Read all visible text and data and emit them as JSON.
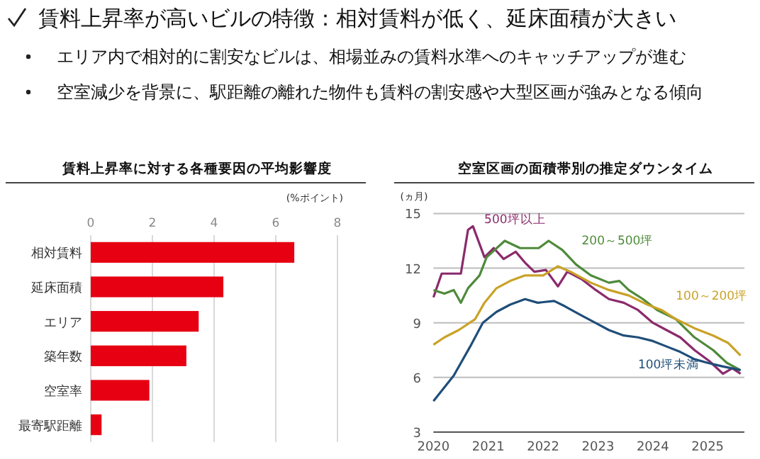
{
  "chart_data": [
    {
      "type": "other",
      "title": "賃料上昇率が高いビルの特徴：相対賃料が低く、延床面積が大きい",
      "annotations": [
        "エリア内で相対的に割安なビルは、相場並みの賃料水準へのキャッチアップが進む",
        "空室減少を背景に、駅距離の離れた物件も賃料の割安感や大型区画が強みとなる傾向"
      ]
    },
    {
      "type": "bar",
      "orientation": "horizontal",
      "title": "賃料上昇率に対する各種要因の平均影響度",
      "xlabel": "(%ポイント)",
      "categories": [
        "相対賃料",
        "延床面積",
        "エリア",
        "築年数",
        "空室率",
        "最寄駅距離"
      ],
      "values": [
        6.6,
        4.3,
        3.5,
        3.1,
        1.9,
        0.35
      ],
      "color": "#e60012",
      "xlim": [
        0,
        8
      ],
      "xticks": [
        0,
        2,
        4,
        6,
        8
      ],
      "grid": "x",
      "legend": false
    },
    {
      "type": "line",
      "title": "空室区画の面積帯別の推定ダウンタイム",
      "ylabel": "(ヵ月)",
      "xlim": [
        2020,
        2025.67
      ],
      "xticks": [
        2020,
        2021,
        2022,
        2023,
        2024,
        2025
      ],
      "ylim": [
        3,
        15
      ],
      "yticks": [
        3,
        6,
        9,
        12,
        15
      ],
      "grid": "y",
      "legend": false,
      "marker": "none",
      "line_style": "solid",
      "series": [
        {
          "name": "500坪以上",
          "color": "#8b2a6b",
          "x": [
            2020.0,
            2020.15,
            2020.5,
            2020.63,
            2020.72,
            2020.93,
            2021.1,
            2021.28,
            2021.5,
            2021.67,
            2021.84,
            2022.05,
            2022.27,
            2022.44,
            2022.7,
            2022.96,
            2023.2,
            2023.47,
            2023.73,
            2024.0,
            2024.25,
            2024.5,
            2024.76,
            2025.03,
            2025.28,
            2025.45,
            2025.6
          ],
          "values": [
            10.4,
            11.7,
            11.7,
            14.1,
            14.3,
            12.6,
            13.1,
            12.5,
            12.9,
            12.3,
            11.8,
            11.9,
            11.0,
            11.8,
            11.4,
            10.8,
            10.3,
            10.1,
            9.7,
            9.0,
            8.6,
            8.2,
            7.5,
            6.9,
            6.2,
            6.5,
            6.2
          ]
        },
        {
          "name": "200～500坪",
          "color": "#4e8a3a",
          "x": [
            2020.0,
            2020.2,
            2020.37,
            2020.5,
            2020.63,
            2020.84,
            2020.97,
            2021.3,
            2021.58,
            2021.92,
            2022.1,
            2022.35,
            2022.6,
            2022.87,
            2023.2,
            2023.39,
            2023.56,
            2023.82,
            2024.08,
            2024.42,
            2024.76,
            2025.1,
            2025.35,
            2025.6
          ],
          "values": [
            10.8,
            10.6,
            10.8,
            10.1,
            10.9,
            11.6,
            12.6,
            13.5,
            13.1,
            13.1,
            13.5,
            13.0,
            12.2,
            11.6,
            11.2,
            11.3,
            10.8,
            10.3,
            9.7,
            9.2,
            8.2,
            7.5,
            6.8,
            6.4
          ]
        },
        {
          "name": "100～200坪",
          "color": "#c9a227",
          "x": [
            2020.0,
            2020.2,
            2020.46,
            2020.76,
            2020.93,
            2021.15,
            2021.4,
            2021.67,
            2022.0,
            2022.27,
            2022.5,
            2022.87,
            2023.2,
            2023.56,
            2023.9,
            2024.16,
            2024.42,
            2024.76,
            2025.1,
            2025.37,
            2025.6
          ],
          "values": [
            7.8,
            8.2,
            8.6,
            9.2,
            10.1,
            10.9,
            11.3,
            11.6,
            11.6,
            12.1,
            11.8,
            11.2,
            10.8,
            10.5,
            10.0,
            9.7,
            9.2,
            8.7,
            8.3,
            7.9,
            7.2
          ]
        },
        {
          "name": "100坪未満",
          "color": "#1f4e79",
          "x": [
            2020.0,
            2020.37,
            2020.67,
            2020.9,
            2021.15,
            2021.4,
            2021.67,
            2021.9,
            2022.2,
            2022.4,
            2022.7,
            2022.95,
            2023.2,
            2023.47,
            2023.73,
            2024.0,
            2024.25,
            2024.5,
            2024.76,
            2025.0,
            2025.28,
            2025.6
          ],
          "values": [
            4.7,
            6.1,
            7.7,
            9.0,
            9.6,
            10.0,
            10.3,
            10.1,
            10.2,
            9.9,
            9.4,
            9.0,
            8.6,
            8.3,
            8.2,
            8.0,
            7.7,
            7.4,
            7.0,
            6.8,
            6.6,
            6.4
          ]
        }
      ]
    }
  ]
}
